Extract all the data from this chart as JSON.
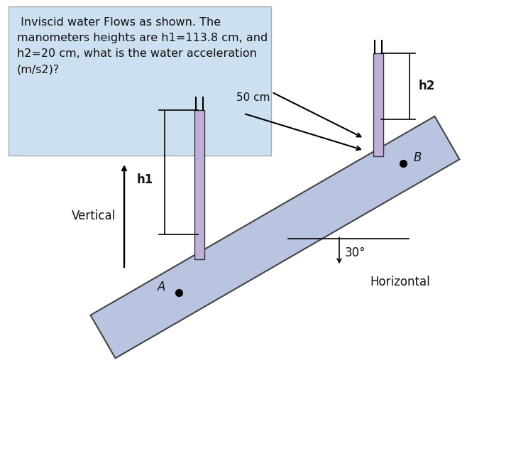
{
  "bg_color": "#e8e8e8",
  "text_box_color": "#cce0f0",
  "diagram_bg": "#ffffff",
  "text_box_text": " Inviscid water Flows as shown. The\nmanometers heights are h1=113.8 cm, and\nh2=20 cm, what is the water acceleration\n(m/s2)?",
  "pipe_color": "#b8c4e0",
  "pipe_edge_color": "#444444",
  "manometer_color": "#c0b0d8",
  "manometer_edge": "#333333",
  "point_A_label": "A",
  "point_B_label": "B",
  "h1_label": "h1",
  "h2_label": "h2",
  "dist_label": "50 cm",
  "angle_label": "30°",
  "vertical_label": "Vertical",
  "horizontal_label": "Horizontal",
  "label_color": "#111111"
}
